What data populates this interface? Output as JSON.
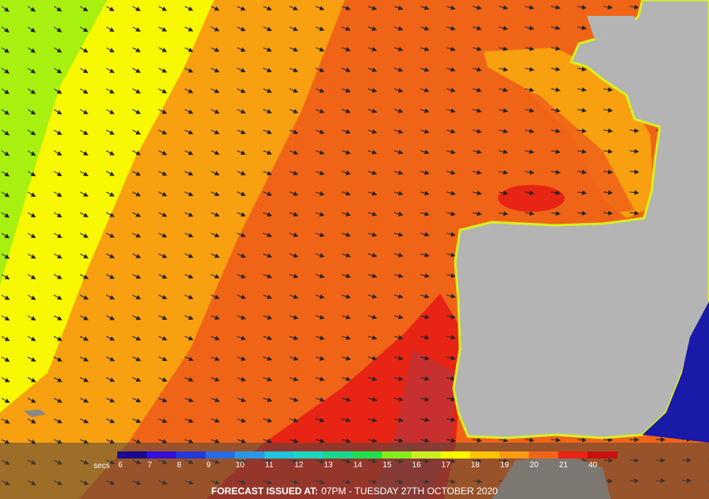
{
  "legend": {
    "unit": "secs",
    "items": [
      {
        "label": 6,
        "color": "#1a0a8c"
      },
      {
        "label": 7,
        "color": "#3410d8"
      },
      {
        "label": 8,
        "color": "#2638d8"
      },
      {
        "label": 9,
        "color": "#2a6ce0"
      },
      {
        "label": 10,
        "color": "#2898e4"
      },
      {
        "label": 11,
        "color": "#20c4dc"
      },
      {
        "label": 12,
        "color": "#1cd8c0"
      },
      {
        "label": 13,
        "color": "#18d890"
      },
      {
        "label": 14,
        "color": "#20e050"
      },
      {
        "label": 15,
        "color": "#84ea20"
      },
      {
        "label": 16,
        "color": "#c8f020"
      },
      {
        "label": 17,
        "color": "#f8f800"
      },
      {
        "label": 18,
        "color": "#f8c400"
      },
      {
        "label": 19,
        "color": "#f89a14"
      },
      {
        "label": 20,
        "color": "#f06418"
      },
      {
        "label": 21,
        "color": "#e82414"
      },
      {
        "label": 40,
        "color": "#c81010"
      }
    ]
  },
  "footer": {
    "prefix": "FORECAST ISSUED AT:",
    "text": "07PM - TUESDAY 27TH OCTOBER 2020"
  }
}
